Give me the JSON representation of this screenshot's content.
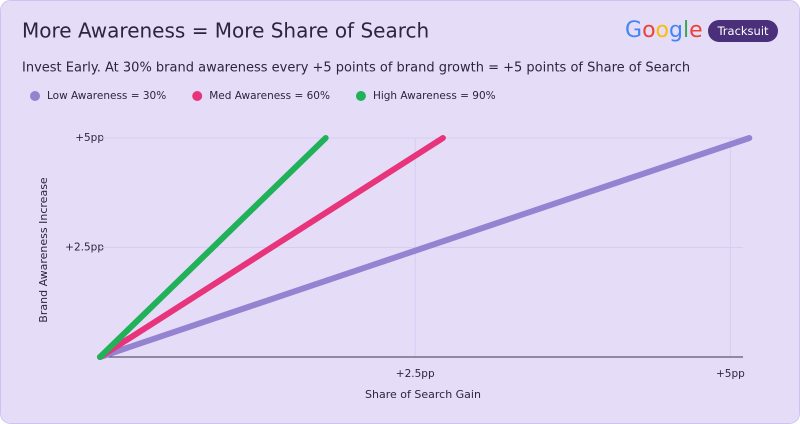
{
  "chart_data": {
    "type": "line",
    "title": "More Awareness = More Share of Search",
    "subtitle": "Invest Early. At 30% brand awareness every +5 points of brand growth = +5 points of Share of Search",
    "brand_logo": "Google",
    "badge": "Tracksuit",
    "x_label": "Share of Search Gain",
    "y_label": "Brand Awareness Increase",
    "xlim": [
      0,
      5.1
    ],
    "ylim": [
      0,
      5
    ],
    "xticks": [
      {
        "value": 2.5,
        "label": "+2.5pp"
      },
      {
        "value": 5,
        "label": "+5pp"
      }
    ],
    "yticks": [
      {
        "value": 2.5,
        "label": "+2.5pp"
      },
      {
        "value": 5,
        "label": "+5pp"
      }
    ],
    "grid": true,
    "legend": "top-left",
    "series": [
      {
        "name": "Low Awareness = 30%",
        "color": "#9582d0",
        "x": [
          0,
          5.15
        ],
        "values": [
          0,
          5
        ]
      },
      {
        "name": "Med Awareness = 60%",
        "color": "#e8347a",
        "x": [
          0,
          2.72
        ],
        "values": [
          0,
          5
        ]
      },
      {
        "name": "High Awareness = 90%",
        "color": "#20b159",
        "x": [
          0,
          1.79
        ],
        "values": [
          0,
          5
        ]
      }
    ]
  }
}
